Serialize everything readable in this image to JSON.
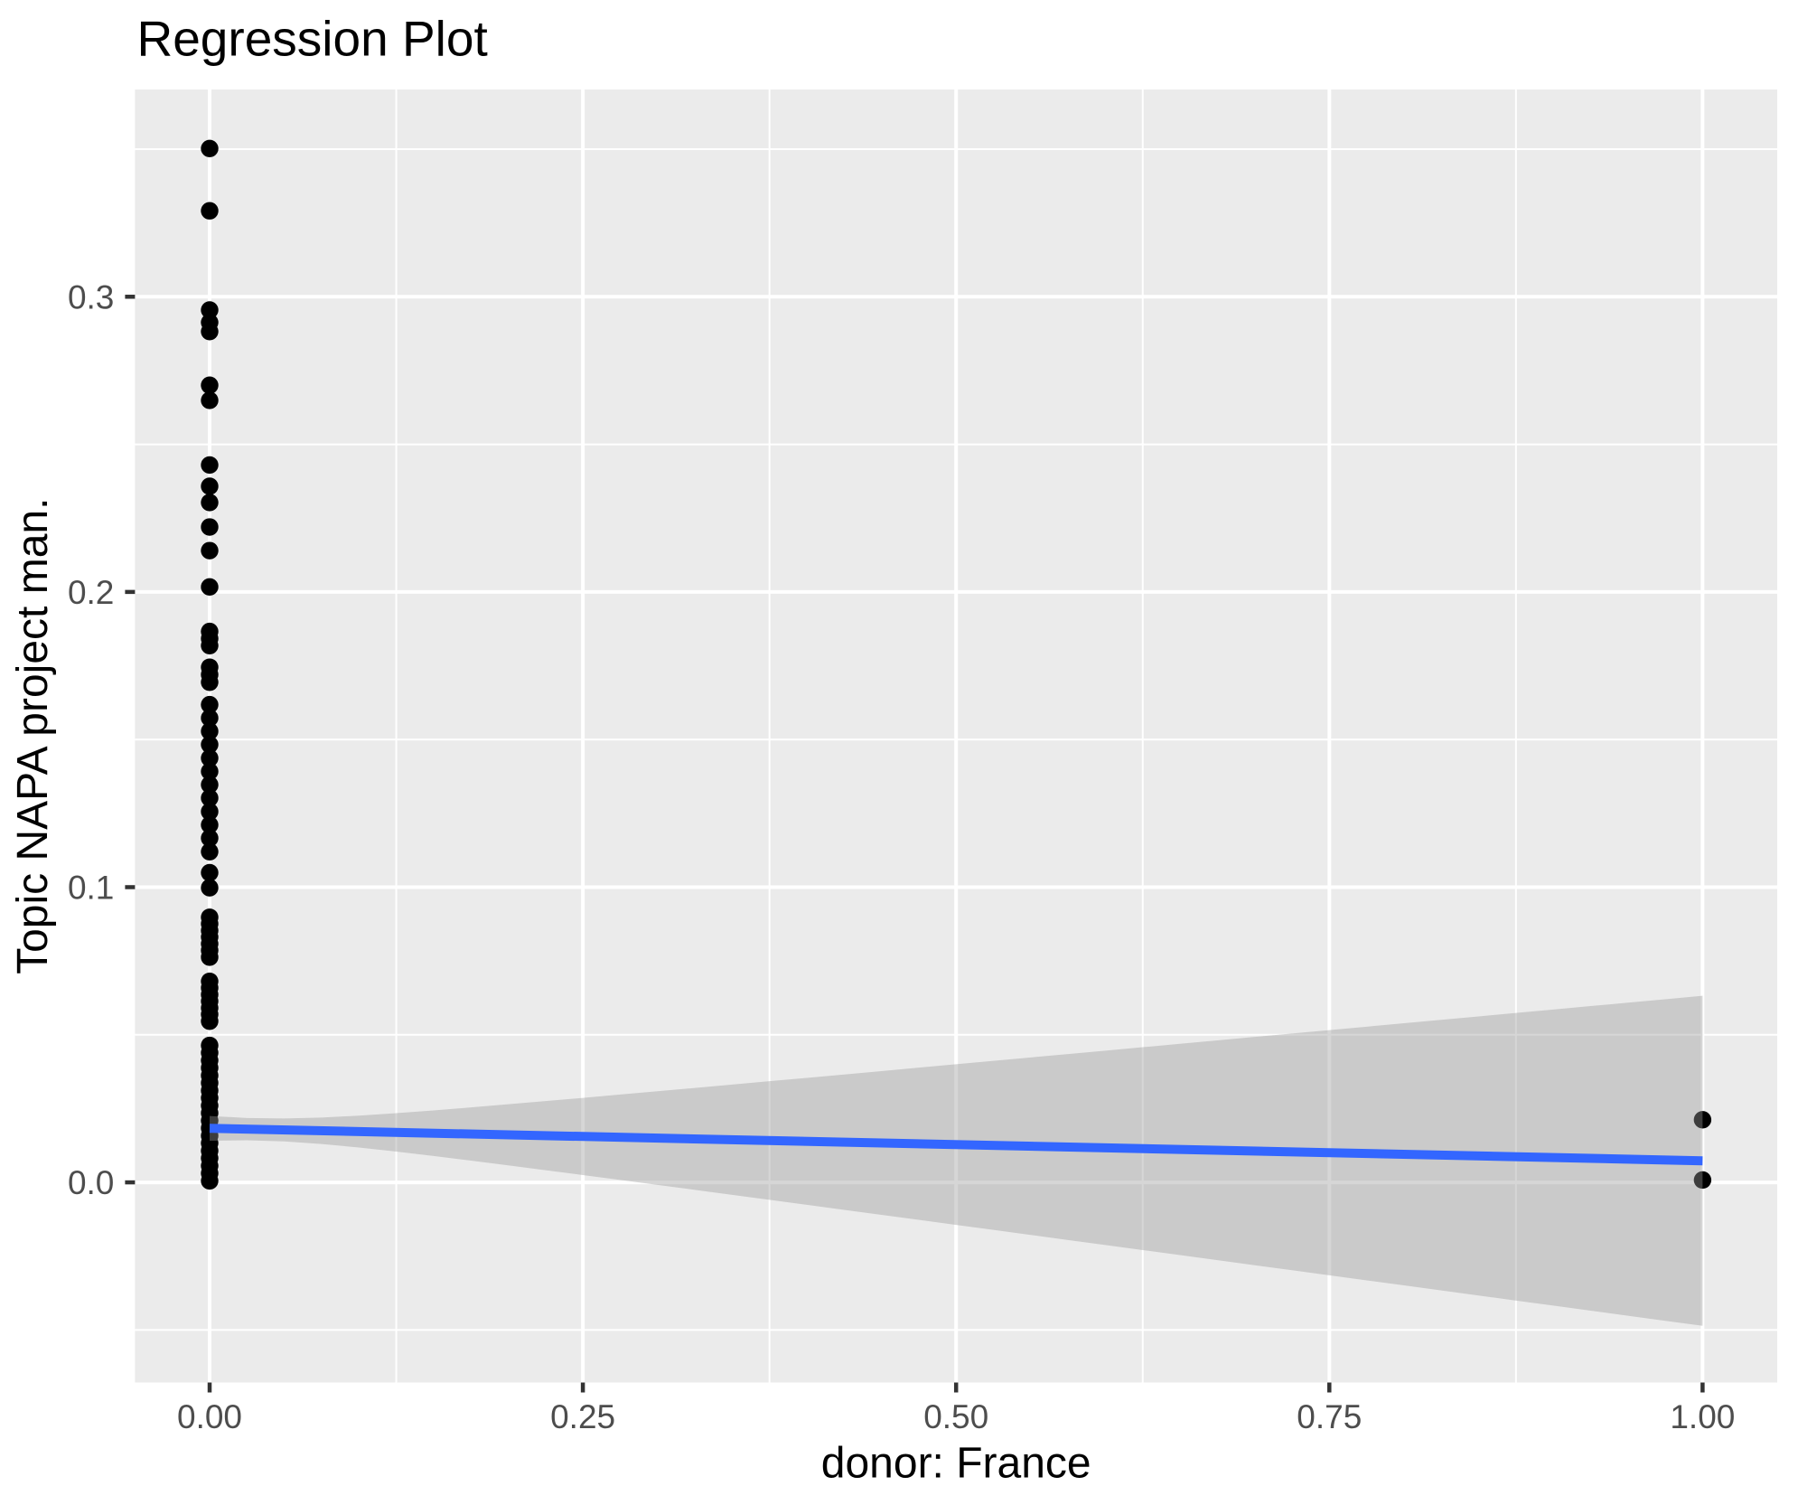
{
  "chart_data": {
    "type": "scatter",
    "title": "Regression Plot",
    "xlabel": "donor: France",
    "ylabel": "Topic NAPA project man.",
    "xlim": [
      -0.05,
      1.05
    ],
    "ylim": [
      -0.0678,
      0.3702
    ],
    "x_ticks": {
      "values": [
        0.0,
        0.25,
        0.5,
        0.75,
        1.0
      ],
      "labels": [
        "0.00",
        "0.25",
        "0.50",
        "0.75",
        "1.00"
      ]
    },
    "y_ticks": {
      "values": [
        0.0,
        0.1,
        0.2,
        0.3
      ],
      "labels": [
        "0.0",
        "0.1",
        "0.2",
        "0.3"
      ]
    },
    "x_minor_breaks": [
      0.125,
      0.375,
      0.625,
      0.875
    ],
    "y_minor_breaks": [
      -0.05,
      0.05,
      0.15,
      0.25,
      0.35
    ],
    "grid": true,
    "legend": "none",
    "points": [
      [
        0,
        0.3502
      ],
      [
        0,
        0.3291
      ],
      [
        0,
        0.2955
      ],
      [
        0,
        0.2913
      ],
      [
        0,
        0.2882
      ],
      [
        0,
        0.27
      ],
      [
        0,
        0.2649
      ],
      [
        0,
        0.243
      ],
      [
        0,
        0.2358
      ],
      [
        0,
        0.2303
      ],
      [
        0,
        0.222
      ],
      [
        0,
        0.214
      ],
      [
        0,
        0.2017
      ],
      [
        0,
        0.1866
      ],
      [
        0,
        0.1842
      ],
      [
        0,
        0.1818
      ],
      [
        0,
        0.1745
      ],
      [
        0,
        0.172
      ],
      [
        0,
        0.1694
      ],
      [
        0,
        0.1618
      ],
      [
        0,
        0.1573
      ],
      [
        0,
        0.1528
      ],
      [
        0,
        0.1483
      ],
      [
        0,
        0.1437
      ],
      [
        0,
        0.1392
      ],
      [
        0,
        0.1347
      ],
      [
        0,
        0.1302
      ],
      [
        0,
        0.1256
      ],
      [
        0,
        0.1211
      ],
      [
        0,
        0.1166
      ],
      [
        0,
        0.112
      ],
      [
        0,
        0.1049
      ],
      [
        0,
        0.0998
      ],
      [
        0,
        0.0898
      ],
      [
        0,
        0.0876
      ],
      [
        0,
        0.0853
      ],
      [
        0,
        0.0831
      ],
      [
        0,
        0.0808
      ],
      [
        0,
        0.0786
      ],
      [
        0,
        0.0763
      ],
      [
        0,
        0.0681
      ],
      [
        0,
        0.0659
      ],
      [
        0,
        0.0636
      ],
      [
        0,
        0.0614
      ],
      [
        0,
        0.0591
      ],
      [
        0,
        0.0569
      ],
      [
        0,
        0.0546
      ],
      [
        0,
        0.0464
      ],
      [
        0,
        0.0439
      ],
      [
        0,
        0.0413
      ],
      [
        0,
        0.0388
      ],
      [
        0,
        0.0362
      ],
      [
        0,
        0.0337
      ],
      [
        0,
        0.0311
      ],
      [
        0,
        0.0286
      ],
      [
        0,
        0.026
      ],
      [
        0,
        0.0235
      ],
      [
        0,
        0.0209
      ],
      [
        0,
        0.0184
      ],
      [
        0,
        0.0158
      ],
      [
        0,
        0.0133
      ],
      [
        0,
        0.0107
      ],
      [
        0,
        0.0082
      ],
      [
        0,
        0.0056
      ],
      [
        0,
        0.0031
      ],
      [
        0,
        0.0005
      ],
      [
        1,
        0.0212
      ],
      [
        1,
        0.0008
      ]
    ],
    "regression_line": {
      "x": [
        0,
        1
      ],
      "y": [
        0.0183,
        0.0073
      ]
    },
    "confidence_band": {
      "x": [
        0.0,
        0.025,
        0.05,
        0.075,
        0.1,
        0.125,
        0.15,
        0.175,
        0.2,
        0.225,
        0.25,
        0.275,
        0.3,
        0.325,
        0.35,
        0.375,
        0.4,
        0.425,
        0.45,
        0.475,
        0.5,
        0.525,
        0.55,
        0.575,
        0.6,
        0.625,
        0.65,
        0.675,
        0.7,
        0.725,
        0.75,
        0.775,
        0.8,
        0.825,
        0.85,
        0.875,
        0.9,
        0.925,
        0.95,
        0.975,
        1.0
      ],
      "upper": [
        0.0225,
        0.0218,
        0.02163,
        0.02195,
        0.02259,
        0.02343,
        0.02438,
        0.02539,
        0.02645,
        0.02753,
        0.02862,
        0.02974,
        0.03086,
        0.03199,
        0.03312,
        0.03426,
        0.0354,
        0.03655,
        0.0377,
        0.03885,
        0.04,
        0.04115,
        0.04231,
        0.04347,
        0.04462,
        0.04578,
        0.04694,
        0.0481,
        0.04926,
        0.05042,
        0.05158,
        0.05274,
        0.0539,
        0.05506,
        0.05622,
        0.05739,
        0.05855,
        0.05971,
        0.06087,
        0.06204,
        0.0632
      ],
      "lower": [
        0.0141,
        0.01425,
        0.01387,
        0.013,
        0.01181,
        0.01042,
        0.00892,
        0.00736,
        0.00575,
        0.00412,
        0.00248,
        0.00081,
        -0.00086,
        -0.00254,
        -0.00422,
        -0.00591,
        -0.0076,
        -0.0093,
        -0.011,
        -0.0127,
        -0.0144,
        -0.0161,
        -0.01781,
        -0.01952,
        -0.02122,
        -0.02293,
        -0.02464,
        -0.02635,
        -0.02806,
        -0.02977,
        -0.03148,
        -0.03319,
        -0.0349,
        -0.03661,
        -0.03832,
        -0.04004,
        -0.04175,
        -0.04346,
        -0.04517,
        -0.04689,
        -0.0486
      ]
    },
    "colors": {
      "point": "#000000",
      "smooth_line": "#3366FF",
      "ribbon_fill": "#999999",
      "ribbon_alpha": 0.4,
      "panel_background": "#EBEBEB",
      "gridline": "#FFFFFF",
      "tick_label": "#4D4D4D",
      "tick_mark": "#333333",
      "title": "#000000",
      "figure_background": "#FFFFFF"
    }
  }
}
